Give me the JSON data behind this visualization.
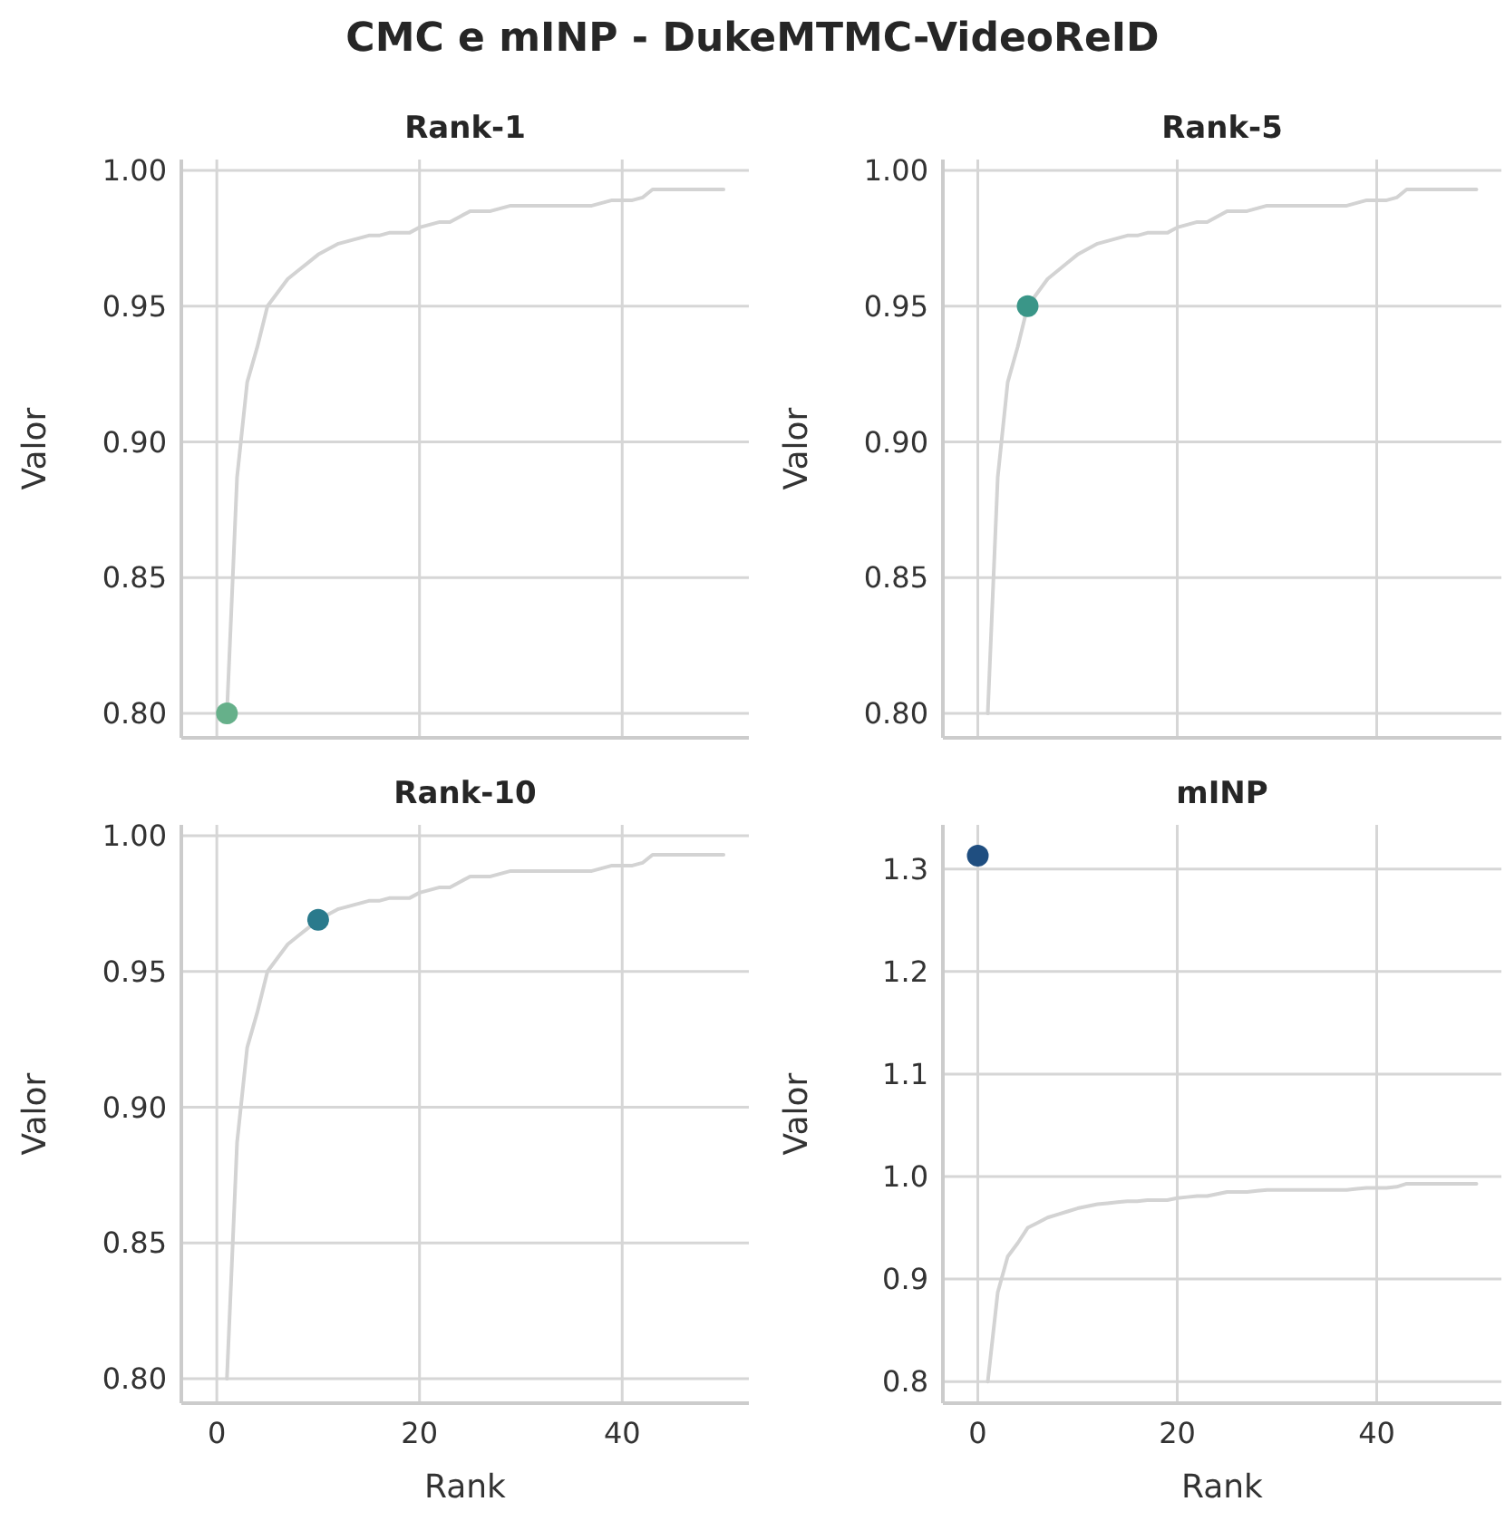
{
  "chart_data": [
    {
      "type": "line",
      "title": "Rank-1",
      "ylabel": "Valor",
      "annotations": [
        "CMC e mINP - DukeMTMC-VideoReID"
      ],
      "xlim": [
        -3.5,
        52.5
      ],
      "xticks": [
        0,
        20,
        40
      ],
      "ylim": [
        0.791,
        1.004
      ],
      "yticks": [
        {
          "value": 0.8,
          "label": "0.80"
        },
        {
          "value": 0.85,
          "label": "0.85"
        },
        {
          "value": 0.9,
          "label": "0.90"
        },
        {
          "value": 0.95,
          "label": "0.95"
        },
        {
          "value": 1.0,
          "label": "1.00"
        }
      ],
      "grid": true,
      "tick_labels": "y",
      "series": [
        {
          "color": "#d3d3d3",
          "x": [
            1,
            2,
            3,
            4,
            5,
            6,
            7,
            8,
            9,
            10,
            11,
            12,
            13,
            14,
            15,
            16,
            17,
            18,
            19,
            20,
            21,
            22,
            23,
            24,
            25,
            26,
            27,
            28,
            29,
            30,
            31,
            32,
            33,
            34,
            35,
            36,
            37,
            38,
            39,
            40,
            41,
            42,
            43,
            44,
            45,
            46,
            47,
            48,
            49,
            50
          ],
          "values": [
            0.8,
            0.887,
            0.922,
            0.935,
            0.95,
            0.955,
            0.96,
            0.963,
            0.966,
            0.969,
            0.971,
            0.973,
            0.974,
            0.975,
            0.976,
            0.976,
            0.977,
            0.977,
            0.977,
            0.979,
            0.98,
            0.981,
            0.981,
            0.983,
            0.985,
            0.985,
            0.985,
            0.986,
            0.987,
            0.987,
            0.987,
            0.987,
            0.987,
            0.987,
            0.987,
            0.987,
            0.987,
            0.988,
            0.989,
            0.989,
            0.989,
            0.99,
            0.993,
            0.993,
            0.993,
            0.993,
            0.993,
            0.993,
            0.993,
            0.993
          ]
        },
        {
          "type": "scatter",
          "color": "#66b08a",
          "marker": "circle",
          "x": [
            1
          ],
          "values": [
            0.8
          ]
        }
      ]
    },
    {
      "type": "line",
      "title": "Rank-5",
      "ylabel": "Valor",
      "xlim": [
        -3.5,
        52.5
      ],
      "xticks": [
        0,
        20,
        40
      ],
      "ylim": [
        0.791,
        1.004
      ],
      "yticks": [
        {
          "value": 0.8,
          "label": "0.80"
        },
        {
          "value": 0.85,
          "label": "0.85"
        },
        {
          "value": 0.9,
          "label": "0.90"
        },
        {
          "value": 0.95,
          "label": "0.95"
        },
        {
          "value": 1.0,
          "label": "1.00"
        }
      ],
      "grid": true,
      "tick_labels": "y",
      "series": [
        {
          "color": "#d3d3d3",
          "x": [
            1,
            2,
            3,
            4,
            5,
            6,
            7,
            8,
            9,
            10,
            11,
            12,
            13,
            14,
            15,
            16,
            17,
            18,
            19,
            20,
            21,
            22,
            23,
            24,
            25,
            26,
            27,
            28,
            29,
            30,
            31,
            32,
            33,
            34,
            35,
            36,
            37,
            38,
            39,
            40,
            41,
            42,
            43,
            44,
            45,
            46,
            47,
            48,
            49,
            50
          ],
          "values": [
            0.8,
            0.887,
            0.922,
            0.935,
            0.95,
            0.955,
            0.96,
            0.963,
            0.966,
            0.969,
            0.971,
            0.973,
            0.974,
            0.975,
            0.976,
            0.976,
            0.977,
            0.977,
            0.977,
            0.979,
            0.98,
            0.981,
            0.981,
            0.983,
            0.985,
            0.985,
            0.985,
            0.986,
            0.987,
            0.987,
            0.987,
            0.987,
            0.987,
            0.987,
            0.987,
            0.987,
            0.987,
            0.988,
            0.989,
            0.989,
            0.989,
            0.99,
            0.993,
            0.993,
            0.993,
            0.993,
            0.993,
            0.993,
            0.993,
            0.993
          ]
        },
        {
          "type": "scatter",
          "color": "#3a9688",
          "marker": "circle",
          "x": [
            5
          ],
          "values": [
            0.95
          ]
        }
      ]
    },
    {
      "type": "line",
      "title": "Rank-10",
      "xlabel": "Rank",
      "ylabel": "Valor",
      "xlim": [
        -3.5,
        52.5
      ],
      "xticks": [
        0,
        20,
        40
      ],
      "ylim": [
        0.791,
        1.004
      ],
      "yticks": [
        {
          "value": 0.8,
          "label": "0.80"
        },
        {
          "value": 0.85,
          "label": "0.85"
        },
        {
          "value": 0.9,
          "label": "0.90"
        },
        {
          "value": 0.95,
          "label": "0.95"
        },
        {
          "value": 1.0,
          "label": "1.00"
        }
      ],
      "grid": true,
      "series": [
        {
          "color": "#d3d3d3",
          "x": [
            1,
            2,
            3,
            4,
            5,
            6,
            7,
            8,
            9,
            10,
            11,
            12,
            13,
            14,
            15,
            16,
            17,
            18,
            19,
            20,
            21,
            22,
            23,
            24,
            25,
            26,
            27,
            28,
            29,
            30,
            31,
            32,
            33,
            34,
            35,
            36,
            37,
            38,
            39,
            40,
            41,
            42,
            43,
            44,
            45,
            46,
            47,
            48,
            49,
            50
          ],
          "values": [
            0.8,
            0.887,
            0.922,
            0.935,
            0.95,
            0.955,
            0.96,
            0.963,
            0.966,
            0.969,
            0.971,
            0.973,
            0.974,
            0.975,
            0.976,
            0.976,
            0.977,
            0.977,
            0.977,
            0.979,
            0.98,
            0.981,
            0.981,
            0.983,
            0.985,
            0.985,
            0.985,
            0.986,
            0.987,
            0.987,
            0.987,
            0.987,
            0.987,
            0.987,
            0.987,
            0.987,
            0.987,
            0.988,
            0.989,
            0.989,
            0.989,
            0.99,
            0.993,
            0.993,
            0.993,
            0.993,
            0.993,
            0.993,
            0.993,
            0.993
          ]
        },
        {
          "type": "scatter",
          "color": "#2a7a8c",
          "marker": "circle",
          "x": [
            10
          ],
          "values": [
            0.969
          ]
        }
      ]
    },
    {
      "type": "line",
      "title": "mINP",
      "xlabel": "Rank",
      "ylabel": "Valor",
      "xlim": [
        -3.5,
        52.5
      ],
      "xticks": [
        0,
        20,
        40
      ],
      "ylim": [
        0.779,
        1.343
      ],
      "yticks": [
        0.8,
        0.9,
        {
          "value": 1.0,
          "label": "1.0"
        },
        1.1,
        1.2,
        1.3
      ],
      "grid": true,
      "series": [
        {
          "color": "#d3d3d3",
          "x": [
            1,
            2,
            3,
            4,
            5,
            6,
            7,
            8,
            9,
            10,
            11,
            12,
            13,
            14,
            15,
            16,
            17,
            18,
            19,
            20,
            21,
            22,
            23,
            24,
            25,
            26,
            27,
            28,
            29,
            30,
            31,
            32,
            33,
            34,
            35,
            36,
            37,
            38,
            39,
            40,
            41,
            42,
            43,
            44,
            45,
            46,
            47,
            48,
            49,
            50
          ],
          "values": [
            0.8,
            0.887,
            0.922,
            0.935,
            0.95,
            0.955,
            0.96,
            0.963,
            0.966,
            0.969,
            0.971,
            0.973,
            0.974,
            0.975,
            0.976,
            0.976,
            0.977,
            0.977,
            0.977,
            0.979,
            0.98,
            0.981,
            0.981,
            0.983,
            0.985,
            0.985,
            0.985,
            0.986,
            0.987,
            0.987,
            0.987,
            0.987,
            0.987,
            0.987,
            0.987,
            0.987,
            0.987,
            0.988,
            0.989,
            0.989,
            0.989,
            0.99,
            0.993,
            0.993,
            0.993,
            0.993,
            0.993,
            0.993,
            0.993,
            0.993
          ]
        },
        {
          "type": "scatter",
          "color": "#1f4e80",
          "marker": "circle",
          "x": [
            0
          ],
          "values": [
            1.313
          ]
        }
      ]
    }
  ]
}
